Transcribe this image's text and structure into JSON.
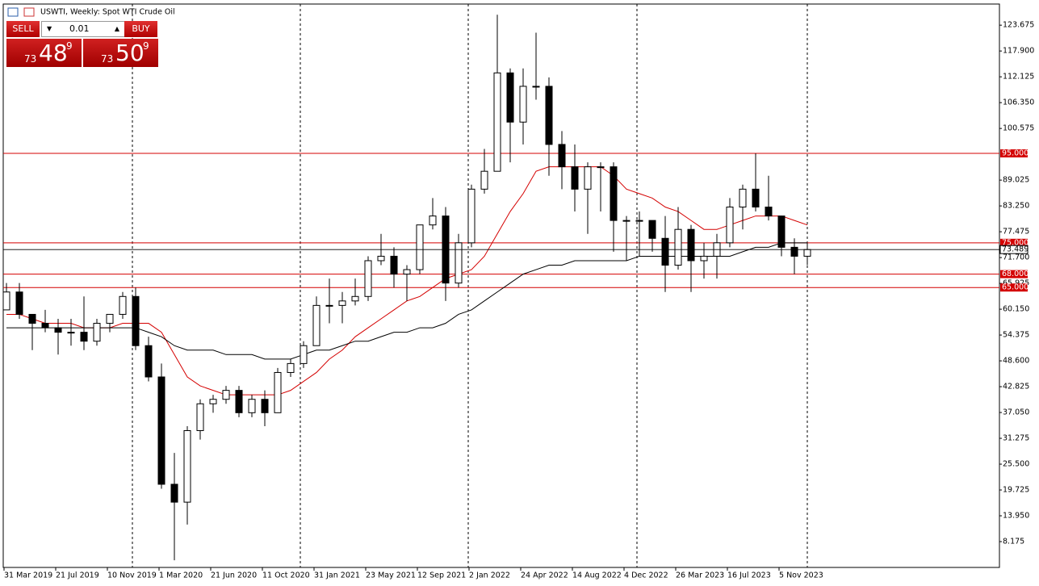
{
  "header": {
    "title": "USWTI, Weekly:  Spot WTI Crude Oil"
  },
  "panel": {
    "sell": "SELL",
    "buy": "BUY",
    "lot": "0.01",
    "sell_price": [
      "73",
      "48",
      "9"
    ],
    "buy_price": [
      "73",
      "50",
      "9"
    ]
  },
  "chart_data": {
    "type": "candlestick",
    "categories": [
      "31 Mar 2019",
      null,
      null,
      null,
      "21 Jul 2019",
      null,
      null,
      null,
      "10 Nov 2019",
      null,
      null,
      null,
      "1 Mar 2020",
      null,
      null,
      null,
      "21 Jun 2020",
      null,
      null,
      null,
      "11 Oct 2020",
      null,
      null,
      null,
      "31 Jan 2021",
      null,
      null,
      null,
      "23 May 2021",
      null,
      null,
      null,
      "12 Sep 2021",
      null,
      null,
      null,
      "2 Jan 2022",
      null,
      null,
      null,
      "24 Apr 2022",
      null,
      null,
      null,
      "14 Aug 2022",
      null,
      null,
      null,
      "4 Dec 2022",
      null,
      null,
      null,
      "26 Mar 2023",
      null,
      null,
      null,
      "16 Jul 2023",
      null,
      null,
      null,
      "5 Nov 2023",
      null,
      null
    ],
    "open": [
      60,
      64,
      59,
      57,
      56,
      55,
      55,
      53,
      57,
      59,
      63,
      52,
      45,
      21,
      17,
      33,
      39,
      40,
      42,
      37,
      40,
      37,
      46,
      48,
      52,
      61,
      61,
      62,
      63,
      71,
      72,
      68,
      69,
      79,
      81,
      66,
      75,
      87,
      91,
      113,
      102,
      110,
      110,
      97,
      92,
      87,
      92,
      92,
      80,
      80,
      80,
      76,
      70,
      78,
      71,
      72,
      75,
      83,
      87,
      83,
      81,
      74,
      72
    ],
    "high": [
      66,
      66,
      59,
      60,
      58,
      58,
      63,
      58,
      59,
      64,
      65,
      54,
      48,
      28,
      34,
      40,
      41,
      43,
      43,
      41,
      42,
      47,
      49,
      53,
      63,
      67,
      64,
      67,
      72,
      77,
      74,
      70,
      79,
      85,
      83,
      77,
      88,
      96,
      126,
      114,
      114,
      122,
      112,
      100,
      97,
      93,
      93,
      93,
      81,
      82,
      80,
      81,
      83,
      79,
      75,
      77,
      85,
      88,
      95,
      90,
      81,
      76,
      75
    ],
    "low": [
      60,
      58,
      51,
      55,
      50,
      52,
      51,
      52,
      55,
      58,
      51,
      44,
      20,
      4,
      12,
      31,
      37,
      39,
      36,
      36,
      34,
      37,
      45,
      47,
      52,
      57,
      57,
      61,
      62,
      70,
      65,
      62,
      68,
      78,
      62,
      65,
      74,
      86,
      91,
      93,
      97,
      107,
      90,
      87,
      82,
      77,
      82,
      73,
      71,
      72,
      73,
      64,
      69,
      64,
      67,
      67,
      74,
      78,
      82,
      80,
      72,
      68,
      70
    ],
    "close": [
      64,
      59,
      57,
      56,
      55,
      55,
      53,
      57,
      59,
      63,
      52,
      45,
      21,
      17,
      33,
      39,
      40,
      42,
      37,
      40,
      37,
      46,
      48,
      52,
      61,
      61,
      62,
      63,
      71,
      72,
      68,
      69,
      79,
      81,
      66,
      75,
      87,
      91,
      113,
      102,
      110,
      110,
      97,
      92,
      87,
      92,
      92,
      80,
      80,
      80,
      76,
      70,
      78,
      71,
      72,
      75,
      83,
      87,
      83,
      81,
      74,
      72,
      73.489
    ],
    "lines": [
      {
        "color": "#d40000",
        "values": [
          59,
          59,
          58,
          57,
          57,
          57,
          56,
          56,
          56,
          57,
          57,
          57,
          55,
          50,
          45,
          43,
          42,
          41,
          41,
          41,
          41,
          41,
          42,
          44,
          46,
          49,
          51,
          54,
          56,
          58,
          60,
          62,
          63,
          65,
          67,
          68,
          69,
          72,
          77,
          82,
          86,
          91,
          92,
          92,
          92,
          92,
          92,
          90,
          87,
          86,
          85,
          83,
          82,
          80,
          78,
          78,
          79,
          80,
          81,
          81,
          81,
          80,
          79
        ]
      },
      {
        "color": "#000000",
        "values": [
          56,
          56,
          56,
          56,
          56,
          56,
          56,
          56,
          56,
          56,
          56,
          55,
          54,
          52,
          51,
          51,
          51,
          50,
          50,
          50,
          49,
          49,
          49,
          50,
          51,
          51,
          52,
          53,
          53,
          54,
          55,
          55,
          56,
          56,
          57,
          59,
          60,
          62,
          64,
          66,
          68,
          69,
          70,
          70,
          71,
          71,
          71,
          71,
          71,
          72,
          72,
          72,
          72,
          72,
          72,
          72,
          72,
          73,
          74,
          74,
          75,
          75,
          75
        ]
      }
    ],
    "levels": [
      {
        "value": 95,
        "label": "95.000"
      },
      {
        "value": 75,
        "label": "75.000"
      },
      {
        "value": 68,
        "label": "68.000"
      },
      {
        "value": 65,
        "label": "65.000"
      }
    ],
    "current": {
      "value": 73.489,
      "label": "73.489"
    },
    "level_color": "#d40000",
    "ylim": [
      2.4,
      128.4
    ],
    "yticks": [
      123.675,
      {
        "value": 117.9,
        "label": "117.900"
      },
      112.125,
      {
        "value": 106.35,
        "label": "106.350"
      },
      100.575,
      89.025,
      {
        "value": 83.25,
        "label": "83.250"
      },
      77.475,
      {
        "value": 71.7,
        "label": "71.700"
      },
      65.925,
      {
        "value": 60.15,
        "label": "60.150"
      },
      54.375,
      {
        "value": 48.6,
        "label": "48.600"
      },
      42.825,
      {
        "value": 37.05,
        "label": "37.050"
      },
      31.275,
      {
        "value": 25.5,
        "label": "25.500"
      },
      19.725,
      {
        "value": 13.95,
        "label": "13.950"
      },
      8.175
    ]
  }
}
